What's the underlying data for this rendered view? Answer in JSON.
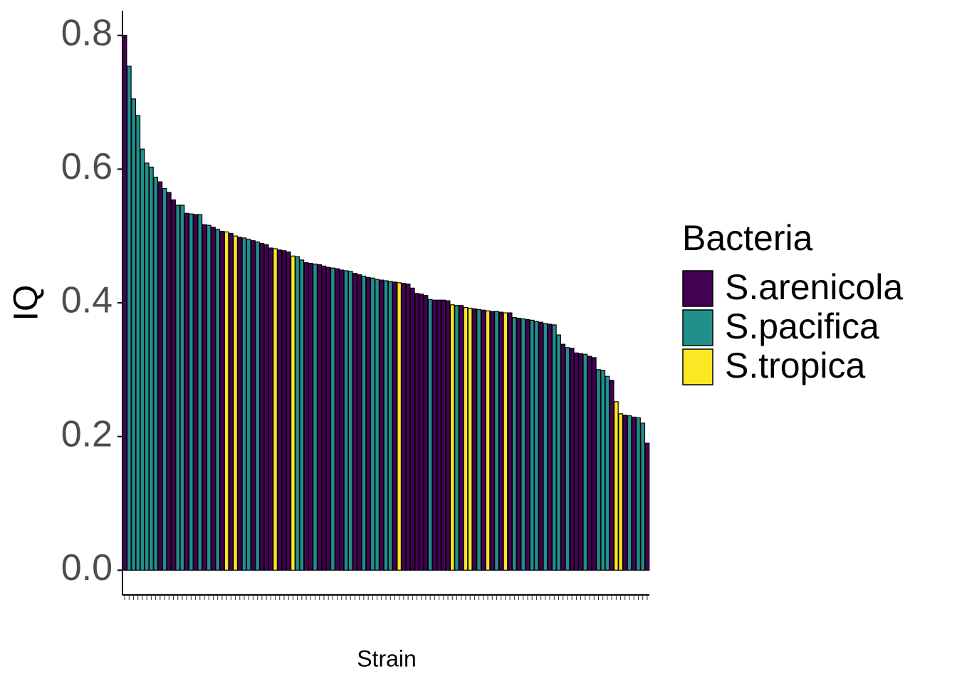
{
  "chart_data": {
    "type": "bar",
    "x_label": "Strain",
    "y_label": "IQ",
    "ylim": [
      -0.037,
      0.837
    ],
    "yticks": [
      {
        "value": 0,
        "label": "0.0"
      },
      0.2,
      0.4,
      0.6,
      0.8
    ],
    "values": [
      0.8,
      0.754,
      0.705,
      0.68,
      0.63,
      0.609,
      0.603,
      0.588,
      0.581,
      0.571,
      0.565,
      0.554,
      0.546,
      0.546,
      0.534,
      0.533,
      0.532,
      0.532,
      0.517,
      0.516,
      0.513,
      0.51,
      0.507,
      0.506,
      0.504,
      0.5,
      0.498,
      0.497,
      0.495,
      0.493,
      0.491,
      0.489,
      0.487,
      0.482,
      0.481,
      0.479,
      0.478,
      0.476,
      0.47,
      0.469,
      0.464,
      0.46,
      0.459,
      0.458,
      0.457,
      0.455,
      0.453,
      0.452,
      0.451,
      0.449,
      0.448,
      0.447,
      0.444,
      0.442,
      0.44,
      0.438,
      0.437,
      0.435,
      0.434,
      0.433,
      0.432,
      0.431,
      0.43,
      0.429,
      0.428,
      0.422,
      0.414,
      0.413,
      0.411,
      0.405,
      0.404,
      0.404,
      0.404,
      0.403,
      0.397,
      0.396,
      0.396,
      0.393,
      0.392,
      0.391,
      0.39,
      0.389,
      0.388,
      0.387,
      0.387,
      0.386,
      0.385,
      0.385,
      0.378,
      0.377,
      0.376,
      0.375,
      0.374,
      0.372,
      0.371,
      0.369,
      0.368,
      0.367,
      0.352,
      0.338,
      0.333,
      0.332,
      0.325,
      0.324,
      0.323,
      0.32,
      0.318,
      0.3,
      0.299,
      0.29,
      0.284,
      0.252,
      0.234,
      0.232,
      0.231,
      0.229,
      0.228,
      0.22,
      0.19
    ],
    "groups": [
      0,
      1,
      1,
      1,
      1,
      1,
      1,
      1,
      0,
      1,
      0,
      0,
      1,
      1,
      0,
      1,
      0,
      1,
      0,
      1,
      0,
      1,
      0,
      2,
      0,
      2,
      0,
      1,
      1,
      0,
      1,
      0,
      0,
      0,
      2,
      0,
      0,
      0,
      2,
      1,
      1,
      0,
      0,
      1,
      0,
      0,
      0,
      1,
      0,
      0,
      1,
      1,
      0,
      0,
      1,
      0,
      1,
      1,
      0,
      1,
      1,
      0,
      2,
      0,
      0,
      0,
      0,
      0,
      0,
      1,
      0,
      0,
      0,
      0,
      2,
      1,
      0,
      2,
      2,
      0,
      1,
      0,
      2,
      0,
      1,
      0,
      2,
      0,
      1,
      0,
      1,
      0,
      1,
      1,
      0,
      1,
      0,
      1,
      1,
      0,
      1,
      0,
      0,
      0,
      1,
      0,
      0,
      1,
      1,
      1,
      0,
      2,
      2,
      0,
      1,
      0,
      1,
      1,
      0
    ],
    "legend": {
      "title": "Bacteria",
      "items": [
        {
          "name": "S.arenicola",
          "color": "#440154"
        },
        {
          "name": "S.pacifica",
          "color": "#21908c"
        },
        {
          "name": "S.tropica",
          "color": "#fde725"
        }
      ]
    }
  }
}
